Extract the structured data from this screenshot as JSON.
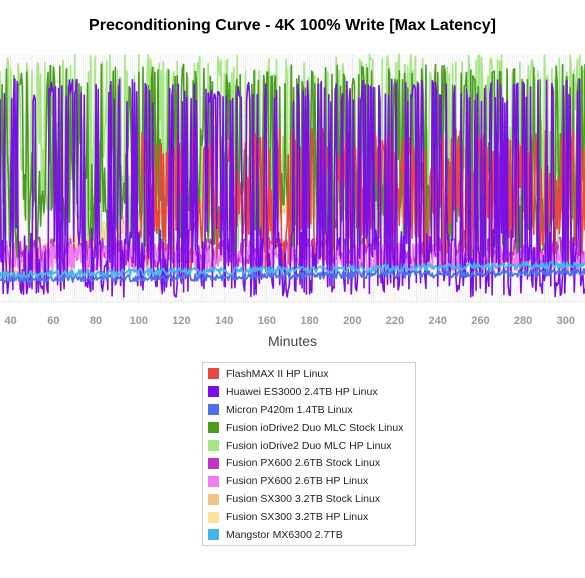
{
  "chart_data": {
    "type": "line",
    "title": "Preconditioning Curve - 4K 100% Write [Max Latency]",
    "xlabel": "Minutes",
    "ylabel": "",
    "xlim": [
      35,
      309
    ],
    "ylim": [
      0,
      100
    ],
    "xticks": [
      40,
      60,
      80,
      100,
      120,
      140,
      160,
      180,
      200,
      220,
      240,
      260,
      280,
      300
    ],
    "grid": true,
    "legend_position": "bottom-center",
    "series": [
      {
        "name": "FlashMAX II HP Linux",
        "color": "#e8473f",
        "pattern": {
          "kind": "spiky",
          "base": 36,
          "spread": 24,
          "peak": 70,
          "floor": 26,
          "x0": 100
        }
      },
      {
        "name": "Huawei ES3000 2.4TB HP Linux",
        "color": "#7a0fe6",
        "pattern": {
          "kind": "spiky",
          "base": 16,
          "spread": 14,
          "peak": 90,
          "floor": 2,
          "x0": 35
        }
      },
      {
        "name": "Micron P420m 1.4TB Linux",
        "color": "#4f71e8",
        "pattern": {
          "kind": "smooth",
          "base": 9,
          "spread": 1.5,
          "x0": 35,
          "trend": 3
        }
      },
      {
        "name": "Fusion ioDrive2 Duo MLC Stock Linux",
        "color": "#4a9b20",
        "pattern": {
          "kind": "spiky",
          "base": 44,
          "spread": 26,
          "peak": 96,
          "floor": 36,
          "x0": 35
        }
      },
      {
        "name": "Fusion ioDrive2 Duo MLC HP Linux",
        "color": "#a6e685",
        "pattern": {
          "kind": "spiky",
          "base": 50,
          "spread": 30,
          "peak": 100,
          "floor": 32,
          "x0": 35
        }
      },
      {
        "name": "Fusion PX600 2.6TB Stock Linux",
        "color": "#c235c2",
        "pattern": {
          "kind": "band",
          "base": 20,
          "spread": 6,
          "x0": 35
        }
      },
      {
        "name": "Fusion PX600 2.6TB HP Linux",
        "color": "#ef7ff0",
        "pattern": {
          "kind": "band",
          "base": 18,
          "spread": 6,
          "x0": 35
        }
      },
      {
        "name": "Fusion SX300 3.2TB Stock Linux",
        "color": "#f0c484",
        "pattern": {
          "kind": "band",
          "base": 38,
          "spread": 5,
          "x0": 35,
          "ramp": true
        }
      },
      {
        "name": "Fusion SX300 3.2TB HP Linux",
        "color": "#ffdf9c",
        "pattern": {
          "kind": "band",
          "base": 40,
          "spread": 5,
          "x0": 35,
          "ramp": true
        }
      },
      {
        "name": "Mangstor MX6300 2.7TB",
        "color": "#45b5ee",
        "pattern": {
          "kind": "smooth",
          "base": 11,
          "spread": 1.5,
          "x0": 35,
          "trend": 4
        }
      }
    ]
  }
}
